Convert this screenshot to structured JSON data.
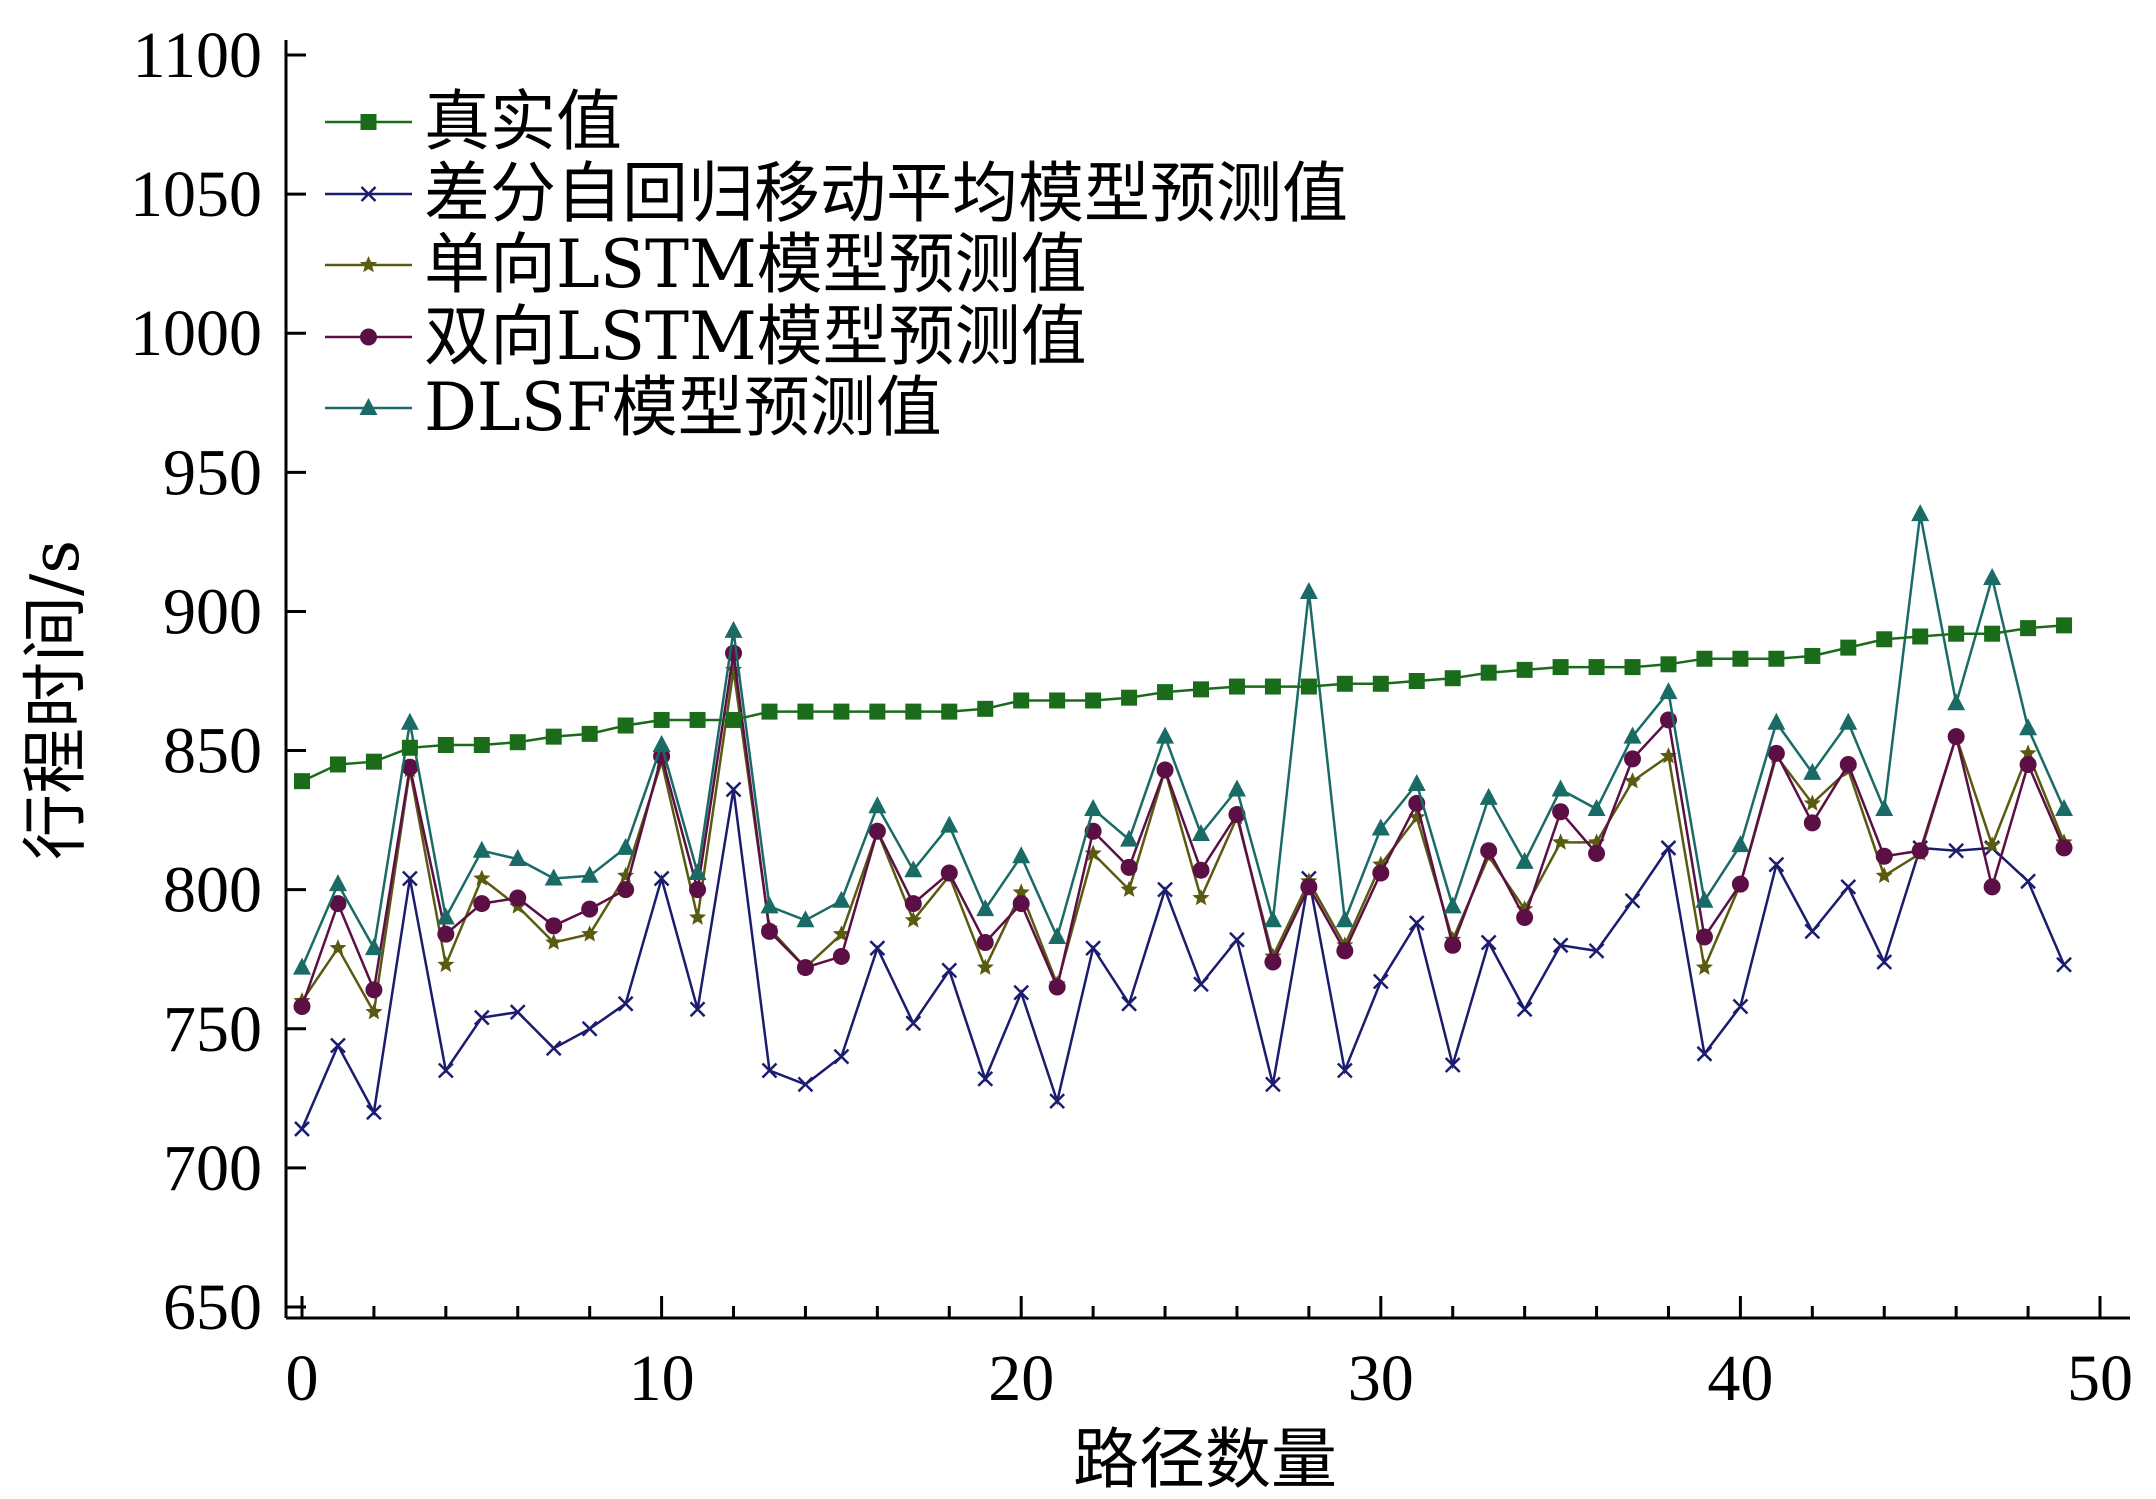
{
  "chart_data": {
    "type": "line",
    "title": "",
    "xlabel": "路径数量",
    "ylabel": "行程时间/s",
    "xlim": [
      0,
      50
    ],
    "ylim": [
      650,
      1100
    ],
    "xticks": [
      0,
      10,
      20,
      30,
      40,
      50
    ],
    "yticks": [
      650,
      700,
      750,
      800,
      850,
      900,
      950,
      1000,
      1050,
      1100
    ],
    "grid": false,
    "legend_position": "top-left",
    "x": [
      0,
      1,
      2,
      3,
      4,
      5,
      6,
      7,
      8,
      9,
      10,
      11,
      12,
      13,
      14,
      15,
      16,
      17,
      18,
      19,
      20,
      21,
      22,
      23,
      24,
      25,
      26,
      27,
      28,
      29,
      30,
      31,
      32,
      33,
      34,
      35,
      36,
      37,
      38,
      39,
      40,
      41,
      42,
      43,
      44,
      45,
      46,
      47,
      48,
      49
    ],
    "series": [
      {
        "name": "真实值",
        "color": "#1a6b1a",
        "marker": "square",
        "values": [
          839,
          845,
          846,
          851,
          852,
          852,
          853,
          855,
          856,
          859,
          861,
          861,
          861,
          864,
          864,
          864,
          864,
          864,
          864,
          865,
          868,
          868,
          868,
          869,
          871,
          872,
          873,
          873,
          873,
          874,
          874,
          875,
          876,
          878,
          879,
          880,
          880,
          880,
          881,
          883,
          883,
          883,
          884,
          887,
          890,
          891,
          892,
          892,
          894,
          895
        ]
      },
      {
        "name": "差分自回归移动平均模型预测值",
        "color": "#1c1c6e",
        "marker": "x",
        "values": [
          714,
          744,
          720,
          804,
          735,
          754,
          756,
          743,
          750,
          759,
          804,
          757,
          836,
          735,
          730,
          740,
          779,
          752,
          771,
          732,
          763,
          724,
          779,
          759,
          800,
          766,
          782,
          730,
          804,
          735,
          767,
          788,
          737,
          781,
          757,
          780,
          778,
          796,
          815,
          741,
          758,
          809,
          785,
          801,
          774,
          815,
          814,
          815,
          803,
          773
        ]
      },
      {
        "name": "单向LSTM模型预测值",
        "color": "#5a5a10",
        "marker": "star",
        "values": [
          760,
          779,
          756,
          843,
          773,
          804,
          794,
          781,
          784,
          805,
          846,
          790,
          879,
          786,
          772,
          784,
          821,
          789,
          805,
          772,
          799,
          766,
          813,
          800,
          843,
          797,
          826,
          776,
          803,
          780,
          809,
          826,
          782,
          812,
          793,
          817,
          817,
          839,
          848,
          772,
          802,
          848,
          831,
          843,
          805,
          813,
          855,
          816,
          849,
          817
        ]
      },
      {
        "name": "双向LSTM模型预测值",
        "color": "#5c0f45",
        "marker": "circle",
        "values": [
          758,
          795,
          764,
          844,
          784,
          795,
          797,
          787,
          793,
          800,
          848,
          800,
          885,
          785,
          772,
          776,
          821,
          795,
          806,
          781,
          795,
          765,
          821,
          808,
          843,
          807,
          827,
          774,
          801,
          778,
          806,
          831,
          780,
          814,
          790,
          828,
          813,
          847,
          861,
          783,
          802,
          849,
          824,
          845,
          812,
          814,
          855,
          801,
          845,
          815
        ]
      },
      {
        "name": "DLSF模型预测值",
        "color": "#1a6b66",
        "marker": "triangle",
        "values": [
          772,
          802,
          779,
          860,
          790,
          814,
          811,
          804,
          805,
          815,
          852,
          806,
          893,
          794,
          789,
          796,
          830,
          807,
          823,
          793,
          812,
          783,
          829,
          818,
          855,
          820,
          836,
          789,
          907,
          789,
          822,
          838,
          794,
          833,
          810,
          836,
          829,
          855,
          871,
          796,
          816,
          860,
          842,
          860,
          829,
          935,
          867,
          912,
          858,
          829
        ]
      }
    ]
  }
}
